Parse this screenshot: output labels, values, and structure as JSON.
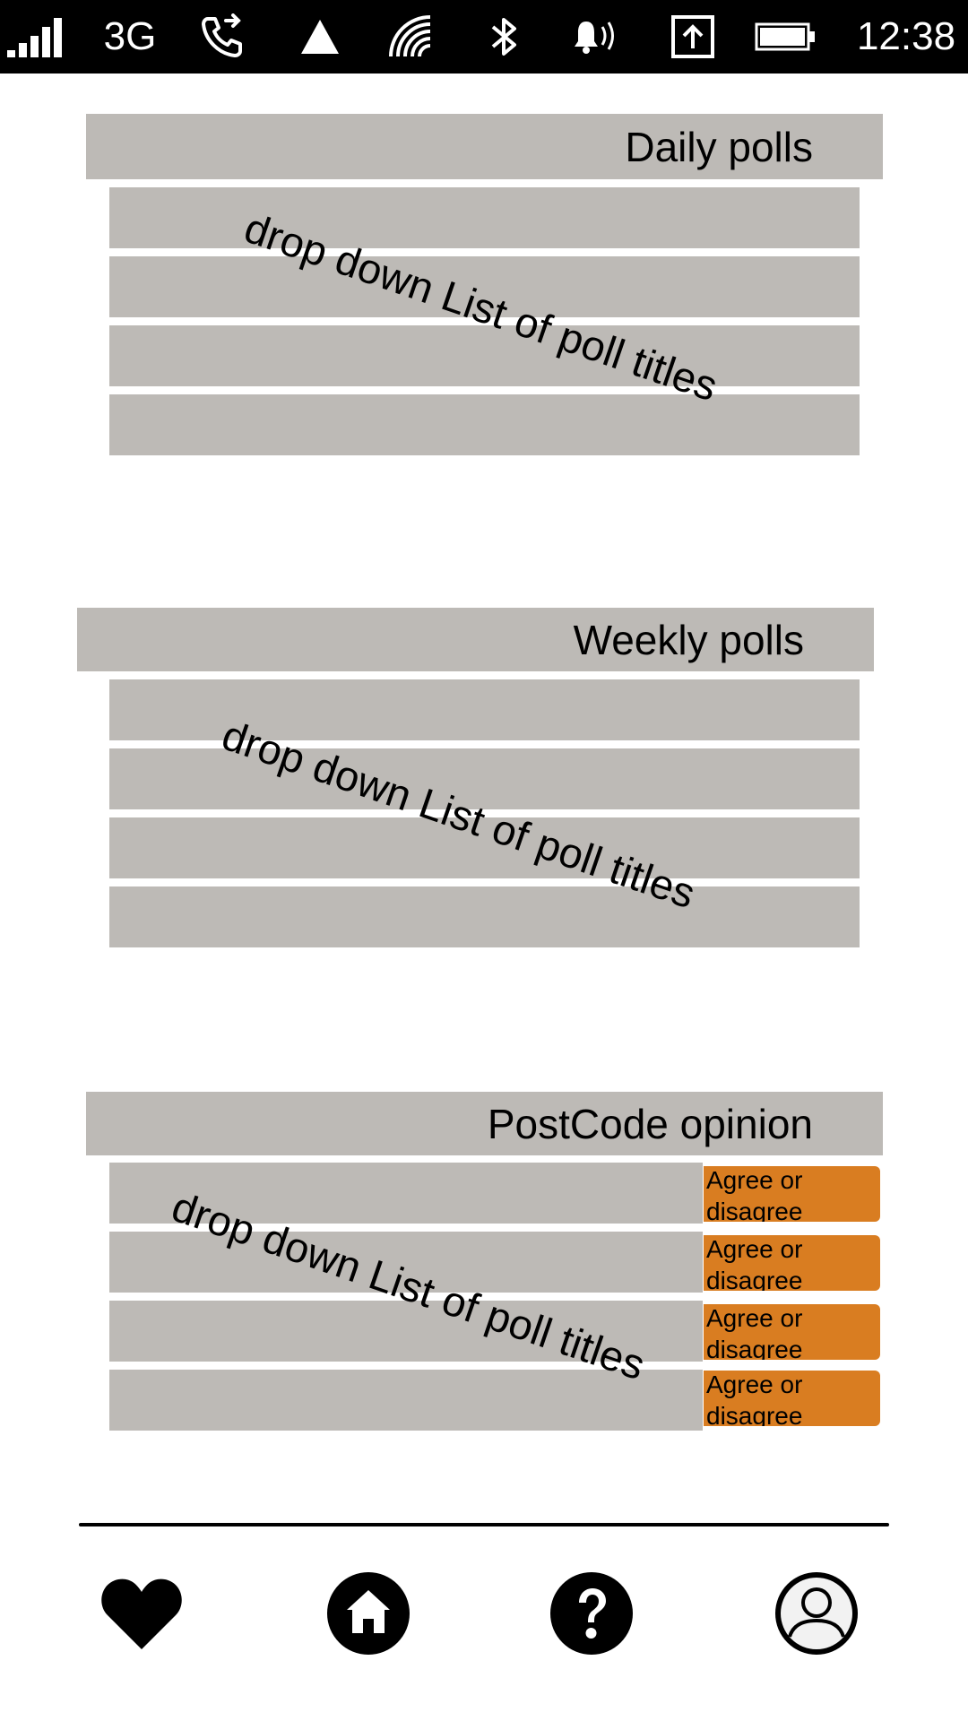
{
  "status_bar": {
    "network_type": "3G",
    "time": "12:38",
    "icons": [
      "signal-bars-icon",
      "call-forward-icon",
      "alert-triangle-icon",
      "nfc-icon",
      "bluetooth-icon",
      "ringer-volume-icon",
      "upload-icon",
      "battery-icon"
    ]
  },
  "sections": {
    "daily": {
      "title": "Daily polls",
      "list_label": "drop down List of poll titles"
    },
    "weekly": {
      "title": "Weekly polls",
      "list_label": "drop down List of poll titles"
    },
    "postcode": {
      "title": "PostCode opinion",
      "list_label": "drop down List of poll titles",
      "agree_buttons": [
        "Agree or\ndisagree",
        "Agree or\ndisagree",
        "Agree or\ndisagree",
        "Agree or\ndisagree"
      ]
    }
  },
  "bottom_nav": {
    "items": [
      "heart-icon",
      "home-icon",
      "help-icon",
      "profile-icon"
    ]
  },
  "colors": {
    "status_bar_bg": "#000000",
    "row_gray": "#bdbab6",
    "accent_orange": "#d97d21"
  }
}
